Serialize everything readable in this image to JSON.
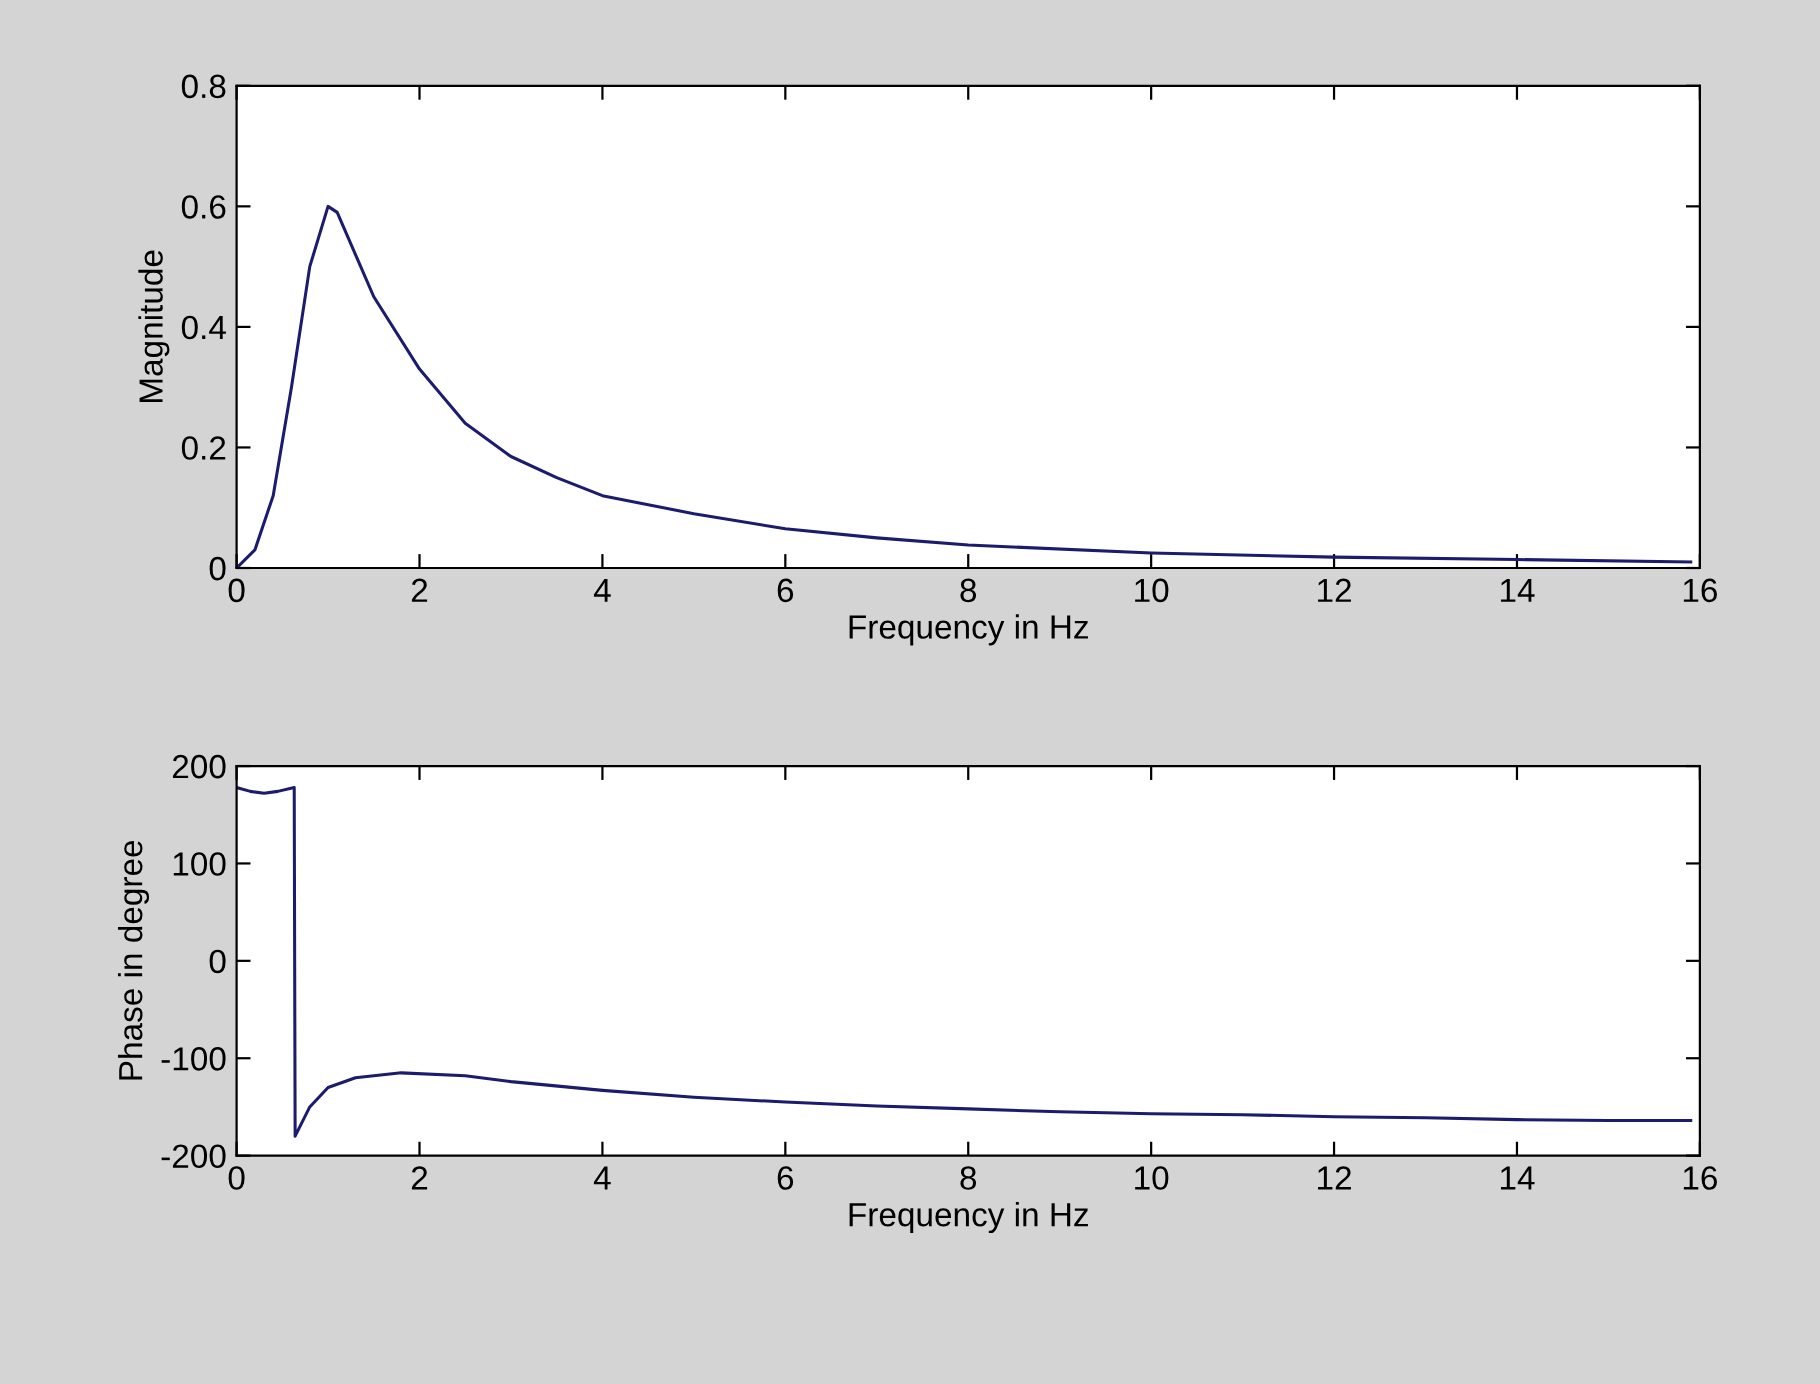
{
  "chart_data": [
    {
      "type": "line",
      "xlabel": "Frequency in Hz",
      "ylabel": "Magnitude",
      "xlim": [
        0,
        16
      ],
      "ylim": [
        0,
        0.8
      ],
      "xticks": [
        0,
        2,
        4,
        6,
        8,
        10,
        12,
        14,
        16
      ],
      "yticks": [
        0,
        0.2,
        0.4,
        0.6,
        0.8
      ],
      "grid": false,
      "line_style": "solid",
      "series": [
        {
          "color": "#1c1c6e",
          "x": [
            0,
            0.2,
            0.4,
            0.6,
            0.8,
            1.0,
            1.1,
            1.3,
            1.5,
            2.0,
            2.5,
            3,
            3.5,
            4,
            5,
            6,
            7,
            8,
            10,
            12,
            14,
            15.9
          ],
          "values": [
            0,
            0.03,
            0.12,
            0.3,
            0.5,
            0.6,
            0.59,
            0.52,
            0.45,
            0.33,
            0.24,
            0.185,
            0.15,
            0.12,
            0.09,
            0.065,
            0.05,
            0.038,
            0.025,
            0.018,
            0.014,
            0.01
          ]
        }
      ]
    },
    {
      "type": "line",
      "xlabel": "Frequency in Hz",
      "ylabel": "Phase in degree",
      "xlim": [
        0,
        16
      ],
      "ylim": [
        -200,
        200
      ],
      "xticks": [
        0,
        2,
        4,
        6,
        8,
        10,
        12,
        14,
        16
      ],
      "yticks": [
        -200,
        -100,
        0,
        100,
        200
      ],
      "grid": false,
      "line_style": "solid",
      "series": [
        {
          "color": "#1c1c6e",
          "x": [
            0,
            0.15,
            0.3,
            0.45,
            0.63,
            0.64,
            0.8,
            1.0,
            1.3,
            1.8,
            2.5,
            3,
            4,
            5,
            6,
            7,
            8,
            9,
            10,
            11,
            12,
            13,
            14,
            15,
            15.9
          ],
          "values": [
            178,
            174,
            172,
            174,
            178,
            -180,
            -150,
            -130,
            -120,
            -115,
            -118,
            -124,
            -133,
            -140,
            -145,
            -149,
            -152,
            -155,
            -157,
            -158,
            -160,
            -161,
            -163,
            -164,
            -164
          ]
        }
      ]
    }
  ]
}
